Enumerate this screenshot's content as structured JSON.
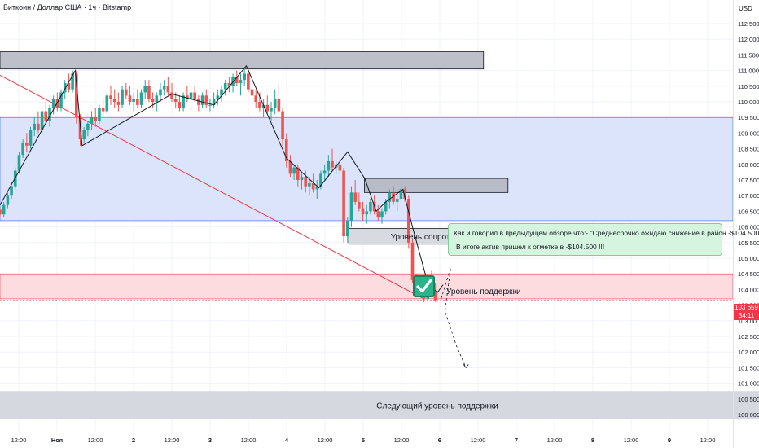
{
  "header": {
    "title": "Биткоин / Доллар США · 1ч · Bitstamp",
    "currency": "USD"
  },
  "current_price": {
    "price": "103 659",
    "countdown": "34:11"
  },
  "callout": {
    "line1": "Как и говорил в предыдущем обзоре что:-  \"Среднесрочно ожидаю снижение в район -$104.500.\"",
    "line2": "В итоге актив пришел к отметке в -$104.500 !!!"
  },
  "colors": {
    "up": "#26a69a",
    "down": "#ef5350",
    "resistance_zone": "#dbe4fb",
    "support_zone": "#fcdcdf",
    "trendline": "#f23645",
    "callout_bg": "#d6f5df",
    "check": "#2bb38c"
  },
  "icons": {
    "check": "check-icon"
  },
  "chart_data": {
    "type": "candlestick",
    "title": "Биткоин / Доллар США · 1ч · Bitstamp",
    "x_ticks": [
      "12:00",
      "Ноя",
      "12:00",
      "2",
      "12:00",
      "3",
      "12:00",
      "4",
      "12:00",
      "5",
      "12:00",
      "6",
      "12:00",
      "7",
      "12:00",
      "8",
      "12:00",
      "9",
      "12:00"
    ],
    "y_ticks": [
      "112 500",
      "112 000",
      "111 500",
      "111 000",
      "110 500",
      "110 000",
      "109 500",
      "109 000",
      "108 500",
      "108 000",
      "107 500",
      "107 000",
      "106 500",
      "106 000",
      "105 500",
      "105 000",
      "104 500",
      "104 000",
      "103 500",
      "103 000",
      "102 500",
      "102 000",
      "101 500",
      "101 000",
      "100 500",
      "100 000"
    ],
    "ylim": [
      99850,
      112750
    ],
    "grid": true,
    "current_price": 103659,
    "zones": [
      {
        "label": "",
        "from": 109500,
        "to": 106200,
        "kind": "resistance-area"
      },
      {
        "label": "",
        "from": 104500,
        "to": 103700,
        "kind": "support-area"
      },
      {
        "label": "",
        "from": 111600,
        "to": 111050,
        "kind": "box",
        "x_from": 0,
        "x_to": 12.66
      },
      {
        "label": "",
        "from": 107550,
        "to": 107100,
        "kind": "box",
        "x_from": 9.54,
        "x_to": 13.3
      },
      {
        "label": "Уровень сопротивления",
        "from": 105950,
        "to": 105450,
        "kind": "box",
        "x_from": 9.13,
        "x_to": 13.7
      },
      {
        "label": "Следующий уровень поддержки",
        "from": 100750,
        "to": 99850,
        "kind": "box",
        "x_from": 0,
        "x_to": 23
      },
      {
        "label": "Уровень поддержки",
        "from": 103900,
        "to": 103700,
        "kind": "label",
        "x_from": 11.6,
        "x_to": 13.75
      }
    ],
    "trendline": [
      [
        0,
        110850
      ],
      [
        11.1,
        103700
      ]
    ],
    "zigzag": [
      [
        0,
        106700
      ],
      [
        1.97,
        111000
      ],
      [
        2.15,
        108600
      ],
      [
        4.5,
        110250
      ],
      [
        5.6,
        109900
      ],
      [
        6.45,
        111150
      ],
      [
        7.5,
        108200
      ],
      [
        8.35,
        107250
      ],
      [
        9.1,
        108400
      ],
      [
        9.55,
        107550
      ],
      [
        9.85,
        106500
      ],
      [
        10.1,
        106800
      ],
      [
        10.55,
        107200
      ],
      [
        10.8,
        106000
      ],
      [
        11.2,
        104200
      ],
      [
        11.45,
        103900
      ],
      [
        11.6,
        104150
      ]
    ],
    "projection": [
      [
        11.55,
        103700
      ],
      [
        11.7,
        104300
      ],
      [
        11.8,
        104700
      ],
      [
        11.65,
        103300
      ],
      [
        11.95,
        102200
      ],
      [
        12.2,
        101500
      ]
    ],
    "candles": [
      [
        0.0,
        106550,
        106650,
        106300,
        106400
      ],
      [
        0.1,
        106400,
        106800,
        106300,
        106700
      ],
      [
        0.2,
        106700,
        107100,
        106600,
        107000
      ],
      [
        0.3,
        107000,
        107450,
        106900,
        107300
      ],
      [
        0.4,
        107300,
        107900,
        107200,
        107800
      ],
      [
        0.5,
        107800,
        108400,
        107700,
        108300
      ],
      [
        0.6,
        108300,
        108800,
        108200,
        108700
      ],
      [
        0.7,
        108700,
        109000,
        108400,
        108600
      ],
      [
        0.8,
        108600,
        109200,
        108500,
        109100
      ],
      [
        0.9,
        109100,
        109500,
        108900,
        109300
      ],
      [
        1.0,
        109300,
        109700,
        109000,
        109100
      ],
      [
        1.1,
        109100,
        109800,
        109000,
        109700
      ],
      [
        1.2,
        109700,
        110000,
        109300,
        109400
      ],
      [
        1.3,
        109400,
        109900,
        109200,
        109800
      ],
      [
        1.4,
        109800,
        110200,
        109600,
        110100
      ],
      [
        1.5,
        110100,
        110300,
        109700,
        109800
      ],
      [
        1.6,
        109800,
        110400,
        109700,
        110300
      ],
      [
        1.7,
        110300,
        110700,
        110100,
        110600
      ],
      [
        1.8,
        110600,
        110900,
        110300,
        110400
      ],
      [
        1.9,
        110400,
        111000,
        110300,
        110900
      ],
      [
        2.0,
        110900,
        111000,
        109300,
        109500
      ],
      [
        2.1,
        109500,
        109600,
        108600,
        108800
      ],
      [
        2.2,
        108800,
        109200,
        108700,
        109100
      ],
      [
        2.3,
        109100,
        109400,
        108900,
        109300
      ],
      [
        2.4,
        109300,
        109700,
        109100,
        109500
      ],
      [
        2.5,
        109500,
        109800,
        109200,
        109400
      ],
      [
        2.6,
        109400,
        109900,
        109300,
        109800
      ],
      [
        2.7,
        109800,
        110100,
        109500,
        109700
      ],
      [
        2.8,
        109700,
        110300,
        109600,
        110200
      ],
      [
        2.9,
        110200,
        110500,
        109900,
        110100
      ],
      [
        3.0,
        110100,
        110400,
        109800,
        110000
      ],
      [
        3.1,
        110000,
        110300,
        109700,
        109900
      ],
      [
        3.2,
        109900,
        110500,
        109800,
        110400
      ],
      [
        3.3,
        110400,
        110600,
        110100,
        110200
      ],
      [
        3.4,
        110200,
        110500,
        109900,
        110000
      ],
      [
        3.5,
        110000,
        110300,
        109700,
        110100
      ],
      [
        3.6,
        110100,
        110400,
        109800,
        109900
      ],
      [
        3.7,
        109900,
        110400,
        109800,
        110300
      ],
      [
        3.8,
        110300,
        110700,
        110100,
        110500
      ],
      [
        3.9,
        110500,
        110700,
        110000,
        110100
      ],
      [
        4.0,
        110100,
        110300,
        109800,
        110000
      ],
      [
        4.1,
        110000,
        110300,
        109700,
        110200
      ],
      [
        4.2,
        110200,
        110600,
        110000,
        110400
      ],
      [
        4.3,
        110400,
        110700,
        110200,
        110500
      ],
      [
        4.4,
        110500,
        110800,
        110200,
        110300
      ],
      [
        4.5,
        110300,
        110600,
        110000,
        110100
      ],
      [
        4.6,
        110100,
        110300,
        109800,
        110000
      ],
      [
        4.7,
        110000,
        110200,
        109700,
        109800
      ],
      [
        4.8,
        109800,
        110300,
        109700,
        110200
      ],
      [
        4.9,
        110200,
        110500,
        110000,
        110100
      ],
      [
        5.0,
        110100,
        110400,
        109900,
        110300
      ],
      [
        5.1,
        110300,
        110500,
        110000,
        110100
      ],
      [
        5.2,
        110100,
        110200,
        109700,
        109900
      ],
      [
        5.3,
        109900,
        110300,
        109800,
        110200
      ],
      [
        5.4,
        110200,
        110400,
        109800,
        109900
      ],
      [
        5.5,
        109900,
        110100,
        109700,
        109900
      ],
      [
        5.6,
        109900,
        110300,
        109800,
        110100
      ],
      [
        5.7,
        110100,
        110400,
        109900,
        110200
      ],
      [
        5.8,
        110200,
        110500,
        110000,
        110400
      ],
      [
        5.9,
        110400,
        110700,
        110200,
        110600
      ],
      [
        6.0,
        110600,
        110800,
        110300,
        110500
      ],
      [
        6.1,
        110500,
        110900,
        110300,
        110800
      ],
      [
        6.2,
        110800,
        111000,
        110500,
        110600
      ],
      [
        6.3,
        110600,
        110900,
        110200,
        110700
      ],
      [
        6.4,
        110700,
        111100,
        110500,
        110900
      ],
      [
        6.5,
        110900,
        111100,
        110300,
        110400
      ],
      [
        6.6,
        110400,
        110600,
        110000,
        110200
      ],
      [
        6.7,
        110200,
        110400,
        109800,
        110000
      ],
      [
        6.8,
        110000,
        110300,
        109700,
        109800
      ],
      [
        6.9,
        109800,
        110100,
        109500,
        109900
      ],
      [
        7.0,
        109900,
        110200,
        109600,
        109700
      ],
      [
        7.1,
        109700,
        110000,
        109400,
        109800
      ],
      [
        7.2,
        109800,
        110400,
        109600,
        110100
      ],
      [
        7.3,
        110100,
        110600,
        109600,
        109700
      ],
      [
        7.4,
        109700,
        109800,
        108600,
        108800
      ],
      [
        7.5,
        108800,
        109000,
        107900,
        108100
      ],
      [
        7.6,
        108100,
        108300,
        107600,
        107700
      ],
      [
        7.7,
        107700,
        108000,
        107500,
        107900
      ],
      [
        7.8,
        107900,
        108000,
        107300,
        107500
      ],
      [
        7.9,
        107500,
        107700,
        107200,
        107600
      ],
      [
        8.0,
        107600,
        107800,
        107100,
        107300
      ],
      [
        8.1,
        107300,
        107600,
        107000,
        107400
      ],
      [
        8.2,
        107400,
        107700,
        107100,
        107200
      ],
      [
        8.3,
        107200,
        107500,
        106900,
        107300
      ],
      [
        8.4,
        107300,
        107800,
        107200,
        107700
      ],
      [
        8.5,
        107700,
        108000,
        107500,
        107800
      ],
      [
        8.6,
        107800,
        108300,
        107600,
        108100
      ],
      [
        8.7,
        108100,
        108500,
        107800,
        107900
      ],
      [
        8.8,
        107900,
        108100,
        107700,
        108000
      ],
      [
        8.9,
        108000,
        108200,
        107700,
        107800
      ],
      [
        9.0,
        107800,
        107900,
        105500,
        105700
      ],
      [
        9.1,
        105700,
        106300,
        105500,
        106200
      ],
      [
        9.2,
        106200,
        107300,
        106000,
        107100
      ],
      [
        9.3,
        107100,
        107500,
        106700,
        106800
      ],
      [
        9.4,
        106800,
        107100,
        106500,
        106600
      ],
      [
        9.5,
        106600,
        106800,
        106200,
        106400
      ],
      [
        9.6,
        106400,
        106700,
        106100,
        106500
      ],
      [
        9.7,
        106500,
        106900,
        106400,
        106800
      ],
      [
        9.8,
        106800,
        107000,
        106400,
        106500
      ],
      [
        9.9,
        106500,
        106700,
        106200,
        106300
      ],
      [
        10.0,
        106300,
        106600,
        106100,
        106500
      ],
      [
        10.1,
        106500,
        106900,
        106400,
        106800
      ],
      [
        10.2,
        106800,
        107200,
        106600,
        107100
      ],
      [
        10.3,
        107100,
        107300,
        106700,
        106800
      ],
      [
        10.4,
        106800,
        107000,
        106500,
        106900
      ],
      [
        10.5,
        106900,
        107300,
        106800,
        107200
      ],
      [
        10.6,
        107200,
        107300,
        106800,
        106900
      ],
      [
        10.7,
        106900,
        107000,
        105300,
        105500
      ],
      [
        10.8,
        105500,
        105600,
        104200,
        104300
      ],
      [
        10.9,
        104300,
        104500,
        103900,
        104100
      ],
      [
        11.0,
        104100,
        104400,
        103800,
        104000
      ],
      [
        11.1,
        104000,
        104300,
        103600,
        103700
      ],
      [
        11.2,
        103700,
        104500,
        103600,
        104400
      ],
      [
        11.3,
        104400,
        104600,
        103800,
        103900
      ],
      [
        11.4,
        103900,
        104200,
        103600,
        103659
      ]
    ]
  }
}
